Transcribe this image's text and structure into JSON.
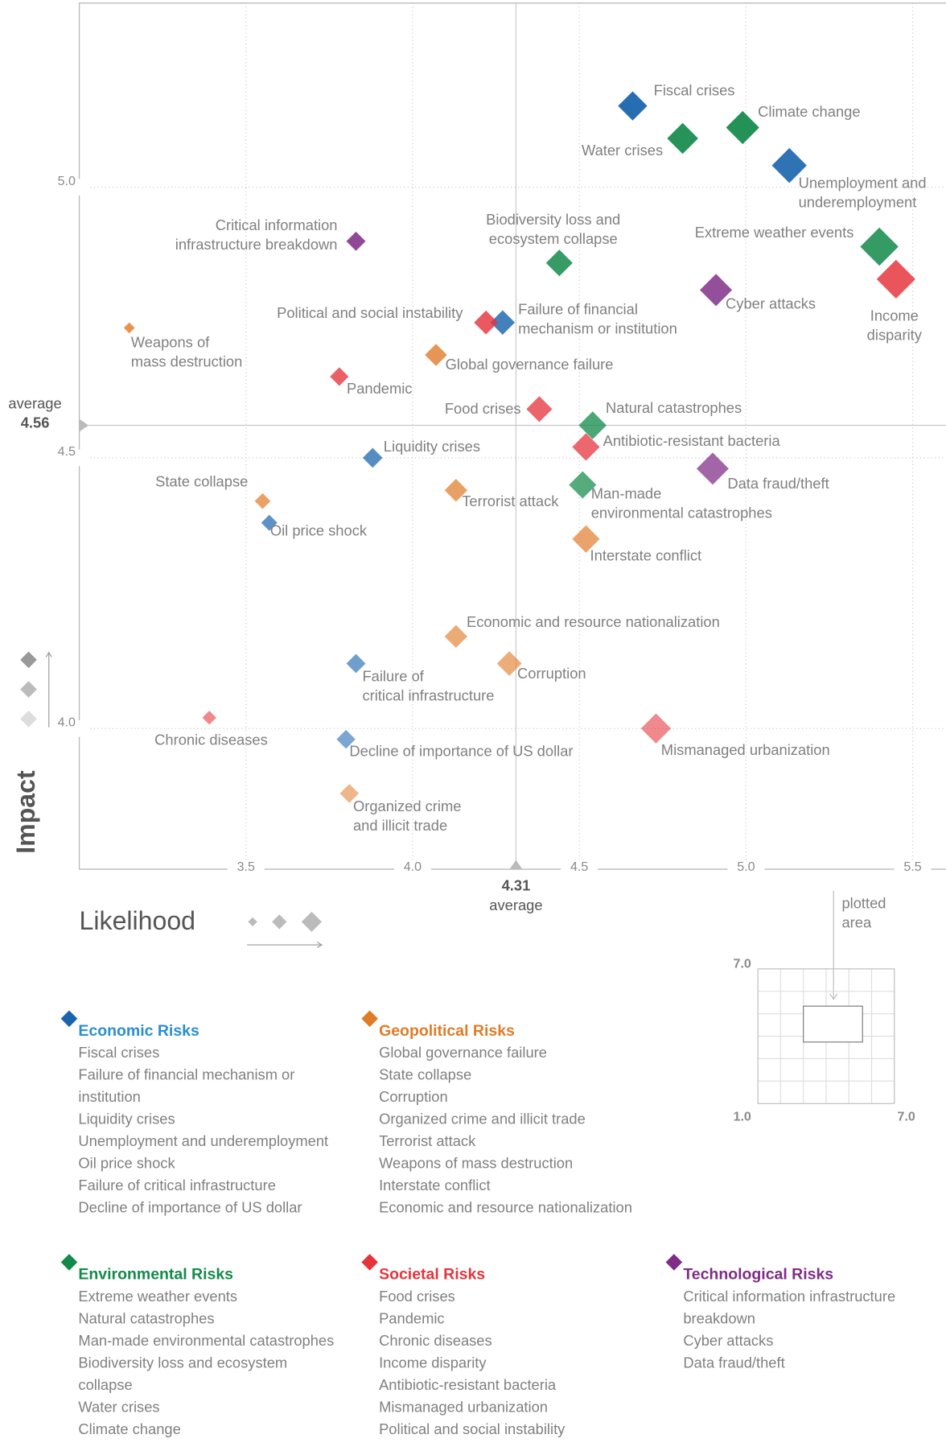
{
  "chart_data": {
    "type": "scatter",
    "xlabel": "Likelihood",
    "ylabel": "Impact",
    "xlim": [
      3.0,
      5.6
    ],
    "ylim": [
      3.74,
      5.34
    ],
    "xticks": [
      3.5,
      {
        "value": 4.0,
        "label": "4.0"
      },
      4.5,
      {
        "value": 5.0,
        "label": "5.0"
      },
      5.5
    ],
    "yticks": [
      {
        "value": 4.0,
        "label": "4.0"
      },
      4.5,
      {
        "value": 5.0,
        "label": "5.0"
      }
    ],
    "grid": true,
    "averages": {
      "x": {
        "value": 4.31,
        "label": "average"
      },
      "y": {
        "value": 4.56,
        "label": "average"
      }
    },
    "series": [
      {
        "name": "Economic Risks",
        "color": "#1a64ad",
        "title_color": "#2a8fcf",
        "labels": [
          [
            "Fiscal crises"
          ],
          [
            "Failure of financial",
            "mechanism or institution"
          ],
          [
            "Liquidity crises"
          ],
          [
            "Unemployment and",
            "underemployment"
          ],
          [
            "Oil price shock"
          ],
          [
            "Failure of",
            "critical infrastructure"
          ],
          [
            "Decline of importance of US dollar"
          ]
        ],
        "x": [
          4.66,
          4.27,
          3.88,
          5.13,
          3.57,
          3.83,
          3.8
        ],
        "y": [
          5.15,
          4.75,
          4.5,
          5.04,
          4.38,
          4.12,
          3.98
        ],
        "legend_items": [
          [
            "Fiscal crises"
          ],
          [
            "Failure of financial mechanism or",
            "institution"
          ],
          [
            "Liquidity crises"
          ],
          [
            "Unemployment and underemployment"
          ],
          [
            "Oil price shock"
          ],
          [
            "Failure of critical infrastructure"
          ],
          [
            "Decline of importance of US dollar"
          ]
        ]
      },
      {
        "name": "Geopolitical Risks",
        "color": "#e07b28",
        "title_color": "#e07b28",
        "labels": [
          [
            "Global governance failure"
          ],
          [
            "State collapse"
          ],
          [
            "Corruption"
          ],
          [
            "Organized crime",
            "and illicit trade"
          ],
          [
            "Terrorist attack"
          ],
          [
            "Weapons of",
            "mass destruction"
          ],
          [
            "Interstate conflict"
          ],
          [
            "Economic and resource nationalization"
          ]
        ],
        "x": [
          4.07,
          3.55,
          4.29,
          3.81,
          4.13,
          3.15,
          4.52,
          4.13
        ],
        "y": [
          4.69,
          4.42,
          4.12,
          3.88,
          4.44,
          4.74,
          4.35,
          4.17
        ],
        "legend_items": [
          [
            "Global governance failure"
          ],
          [
            "State collapse"
          ],
          [
            "Corruption"
          ],
          [
            "Organized crime and illicit trade"
          ],
          [
            "Terrorist attack"
          ],
          [
            "Weapons of mass destruction"
          ],
          [
            "Interstate conflict"
          ],
          [
            "Economic and resource nationalization"
          ]
        ]
      },
      {
        "name": "Environmental Risks",
        "color": "#138a4a",
        "title_color": "#138a4a",
        "labels": [
          [
            "Extreme weather events"
          ],
          [
            "Natural catastrophes"
          ],
          [
            "Man-made",
            "environmental catastrophes"
          ],
          [
            "Biodiversity loss and",
            "ecosystem collapse"
          ],
          [
            "Water crises"
          ],
          [
            "Climate change"
          ]
        ],
        "x": [
          5.4,
          4.54,
          4.51,
          4.44,
          4.81,
          4.99
        ],
        "y": [
          4.89,
          4.56,
          4.45,
          4.86,
          5.09,
          5.11
        ],
        "legend_items": [
          [
            "Extreme weather events"
          ],
          [
            "Natural catastrophes"
          ],
          [
            "Man-made environmental catastrophes"
          ],
          [
            "Biodiversity loss and ecosystem",
            "collapse"
          ],
          [
            "Water crises"
          ],
          [
            "Climate change"
          ]
        ]
      },
      {
        "name": "Societal Risks",
        "color": "#e5343c",
        "title_color": "#e5343c",
        "labels": [
          [
            "Food crises"
          ],
          [
            "Pandemic"
          ],
          [
            "Chronic diseases"
          ],
          [
            "Income",
            "disparity"
          ],
          [
            "Antibiotic-resistant bacteria"
          ],
          [
            "Mismanaged urbanization"
          ],
          [
            "Political and social instability"
          ]
        ],
        "x": [
          4.38,
          3.78,
          3.39,
          5.45,
          4.52,
          4.73,
          4.22
        ],
        "y": [
          4.59,
          4.65,
          4.02,
          4.83,
          4.52,
          4.0,
          4.75
        ],
        "legend_items": [
          [
            "Food crises"
          ],
          [
            "Pandemic"
          ],
          [
            "Chronic diseases"
          ],
          [
            "Income disparity"
          ],
          [
            "Antibiotic-resistant bacteria"
          ],
          [
            "Mismanaged urbanization"
          ],
          [
            "Political and social instability"
          ]
        ]
      },
      {
        "name": "Technological Risks",
        "color": "#7f2c87",
        "title_color": "#7f2c87",
        "labels": [
          [
            "Critical information",
            "infrastructure breakdown"
          ],
          [
            "Cyber attacks"
          ],
          [
            "Data fraud/theft"
          ]
        ],
        "x": [
          3.83,
          4.91,
          4.9
        ],
        "y": [
          4.9,
          4.81,
          4.48
        ],
        "legend_items": [
          [
            "Critical information infrastructure",
            "breakdown"
          ],
          [
            "Cyber attacks"
          ],
          [
            "Data fraud/theft"
          ]
        ]
      }
    ],
    "inset": {
      "label": [
        "plotted",
        "area"
      ],
      "origin": {
        "value": 1.0,
        "label": "1.0"
      },
      "xmax": {
        "value": 7.0,
        "label": "7.0"
      },
      "ymax": {
        "value": 7.0,
        "label": "7.0"
      }
    }
  }
}
